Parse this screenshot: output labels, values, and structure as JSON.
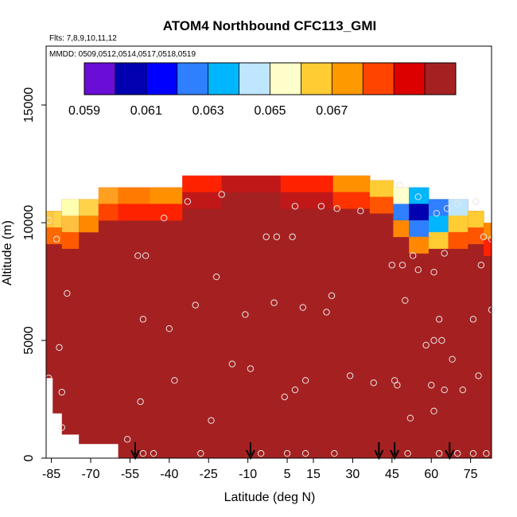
{
  "chart_data": {
    "type": "heatmap",
    "title": "ATOM4 Northbound CFC113_GMI",
    "subtitle_flights": "Flts: 7,8,9,10,11,12",
    "subtitle_dates": "MMDD: 0509,0512,0514,0517,0518,0519",
    "xlabel": "Latitude (deg N)",
    "ylabel": "Altitude (m)",
    "x_ticks": [
      "-85",
      "-70",
      "-55",
      "-40",
      "-25",
      "-10",
      "5",
      "15",
      "30",
      "45",
      "60",
      "75"
    ],
    "y_ticks": [
      "0",
      "5000",
      "10000",
      "15000"
    ],
    "xlim": [
      -87,
      83
    ],
    "ylim": [
      0,
      17500
    ],
    "colorbar": {
      "ticks": [
        "0.059",
        "0.061",
        "0.063",
        "0.065",
        "0.067"
      ],
      "colors": [
        "#6a0dd6",
        "#0000b0",
        "#0000ff",
        "#2f7fff",
        "#00b6ff",
        "#bfe6ff",
        "#ffffcc",
        "#ffcc33",
        "#ff9900",
        "#ff4400",
        "#dd0000",
        "#a52121"
      ]
    },
    "field": {
      "columns": [
        {
          "lat": -86,
          "top": 10500,
          "bottom": 3400,
          "top_colors": [
            "#ffc840",
            "#ff6a00"
          ]
        },
        {
          "lat": -83,
          "top": 10500,
          "bottom": 1900,
          "top_colors": [
            "#ffd24a",
            "#ff6a00"
          ]
        },
        {
          "lat": -79,
          "top": 11000,
          "bottom": 1000,
          "top_colors": [
            "#ffffb0",
            "#ffc040",
            "#ff5a00"
          ]
        },
        {
          "lat": -70,
          "top": 11000,
          "bottom": 600,
          "top_colors": [
            "#ffd24a",
            "#ff8800"
          ]
        },
        {
          "lat": -64,
          "top": 11500,
          "bottom": 600,
          "top_colors": [
            "#ffa020",
            "#ff4400"
          ]
        },
        {
          "lat": -55,
          "top": 11500,
          "bottom": 0,
          "top_colors": [
            "#ff7a00",
            "#ff2200"
          ]
        },
        {
          "lat": -40,
          "top": 11500,
          "bottom": 0,
          "top_colors": [
            "#ff9000",
            "#ff2200"
          ]
        },
        {
          "lat": -30,
          "top": 12000,
          "bottom": 0,
          "top_colors": [
            "#ff2200",
            "#c01818"
          ]
        },
        {
          "lat": -10,
          "top": 12000,
          "bottom": 0,
          "top_colors": [
            "#c01818"
          ]
        },
        {
          "lat": 15,
          "top": 12000,
          "bottom": 0,
          "top_colors": [
            "#ff2200",
            "#c01818"
          ]
        },
        {
          "lat": 30,
          "top": 12000,
          "bottom": 0,
          "top_colors": [
            "#ff9000",
            "#ff3300"
          ]
        },
        {
          "lat": 43,
          "top": 11800,
          "bottom": 0,
          "top_colors": [
            "#ffcc33",
            "#ff5500"
          ]
        },
        {
          "lat": 48,
          "top": 11500,
          "bottom": 0,
          "top_colors": [
            "#ffffcc",
            "#2f7fff",
            "#ff8800"
          ]
        },
        {
          "lat": 55,
          "top": 11500,
          "bottom": 0,
          "top_colors": [
            "#00b6ff",
            "#0000b0",
            "#2f7fff",
            "#ff8800"
          ]
        },
        {
          "lat": 63,
          "top": 11000,
          "bottom": 0,
          "top_colors": [
            "#2f7fff",
            "#00b6ff",
            "#ffcc33"
          ]
        },
        {
          "lat": 70,
          "top": 11000,
          "bottom": 0,
          "top_colors": [
            "#bfe6ff",
            "#ffcc33",
            "#ff5500"
          ]
        },
        {
          "lat": 78,
          "top": 10500,
          "bottom": 0,
          "top_colors": [
            "#ffcc33",
            "#ff5500"
          ]
        },
        {
          "lat": 82,
          "top": 10000,
          "bottom": 0,
          "top_colors": [
            "#ff8800",
            "#ff2200"
          ]
        }
      ]
    },
    "observations": [
      [
        -86,
        3400
      ],
      [
        -82,
        4700
      ],
      [
        -81,
        2800
      ],
      [
        -81,
        1300
      ],
      [
        -83,
        9300
      ],
      [
        -79,
        7000
      ],
      [
        -86,
        10100
      ],
      [
        -56,
        800
      ],
      [
        -52,
        8600
      ],
      [
        -49,
        8600
      ],
      [
        -50,
        5900
      ],
      [
        -51,
        2400
      ],
      [
        -50,
        200
      ],
      [
        -46,
        200
      ],
      [
        -42,
        10200
      ],
      [
        -40,
        5500
      ],
      [
        -38,
        3300
      ],
      [
        -33,
        10900
      ],
      [
        -30,
        6500
      ],
      [
        -28,
        200
      ],
      [
        -24,
        1600
      ],
      [
        -22,
        7700
      ],
      [
        -20,
        11200
      ],
      [
        -16,
        4000
      ],
      [
        -11,
        6100
      ],
      [
        -9,
        3800
      ],
      [
        -5,
        200
      ],
      [
        -3,
        9400
      ],
      [
        0,
        6600
      ],
      [
        1,
        9400
      ],
      [
        4,
        2600
      ],
      [
        5,
        200
      ],
      [
        7,
        9400
      ],
      [
        8,
        2900
      ],
      [
        8,
        10700
      ],
      [
        11,
        6400
      ],
      [
        12,
        3300
      ],
      [
        12,
        200
      ],
      [
        18,
        10700
      ],
      [
        20,
        6200
      ],
      [
        22,
        6900
      ],
      [
        23,
        200
      ],
      [
        24,
        10600
      ],
      [
        29,
        3500
      ],
      [
        33,
        10500
      ],
      [
        38,
        3200
      ],
      [
        45,
        8200
      ],
      [
        46,
        3300
      ],
      [
        47,
        3100
      ],
      [
        48,
        11600
      ],
      [
        49,
        8200
      ],
      [
        50,
        6700
      ],
      [
        51,
        200
      ],
      [
        52,
        1700
      ],
      [
        53,
        8600
      ],
      [
        55,
        11100
      ],
      [
        55,
        8000
      ],
      [
        58,
        4800
      ],
      [
        60,
        3100
      ],
      [
        61,
        2000
      ],
      [
        61,
        7900
      ],
      [
        61,
        5000
      ],
      [
        62,
        10400
      ],
      [
        63,
        5900
      ],
      [
        63,
        200
      ],
      [
        64,
        5000
      ],
      [
        65,
        2900
      ],
      [
        65,
        8700
      ],
      [
        66,
        10600
      ],
      [
        68,
        4200
      ],
      [
        70,
        10800
      ],
      [
        70,
        200
      ],
      [
        72,
        2900
      ],
      [
        76,
        5900
      ],
      [
        76,
        200
      ],
      [
        77,
        10900
      ],
      [
        78,
        3500
      ],
      [
        79,
        8200
      ],
      [
        80,
        9400
      ],
      [
        81,
        200
      ],
      [
        83,
        6300
      ],
      [
        83,
        9300
      ]
    ],
    "flight_markers_lat": [
      -53,
      -9,
      40,
      46,
      67
    ]
  }
}
